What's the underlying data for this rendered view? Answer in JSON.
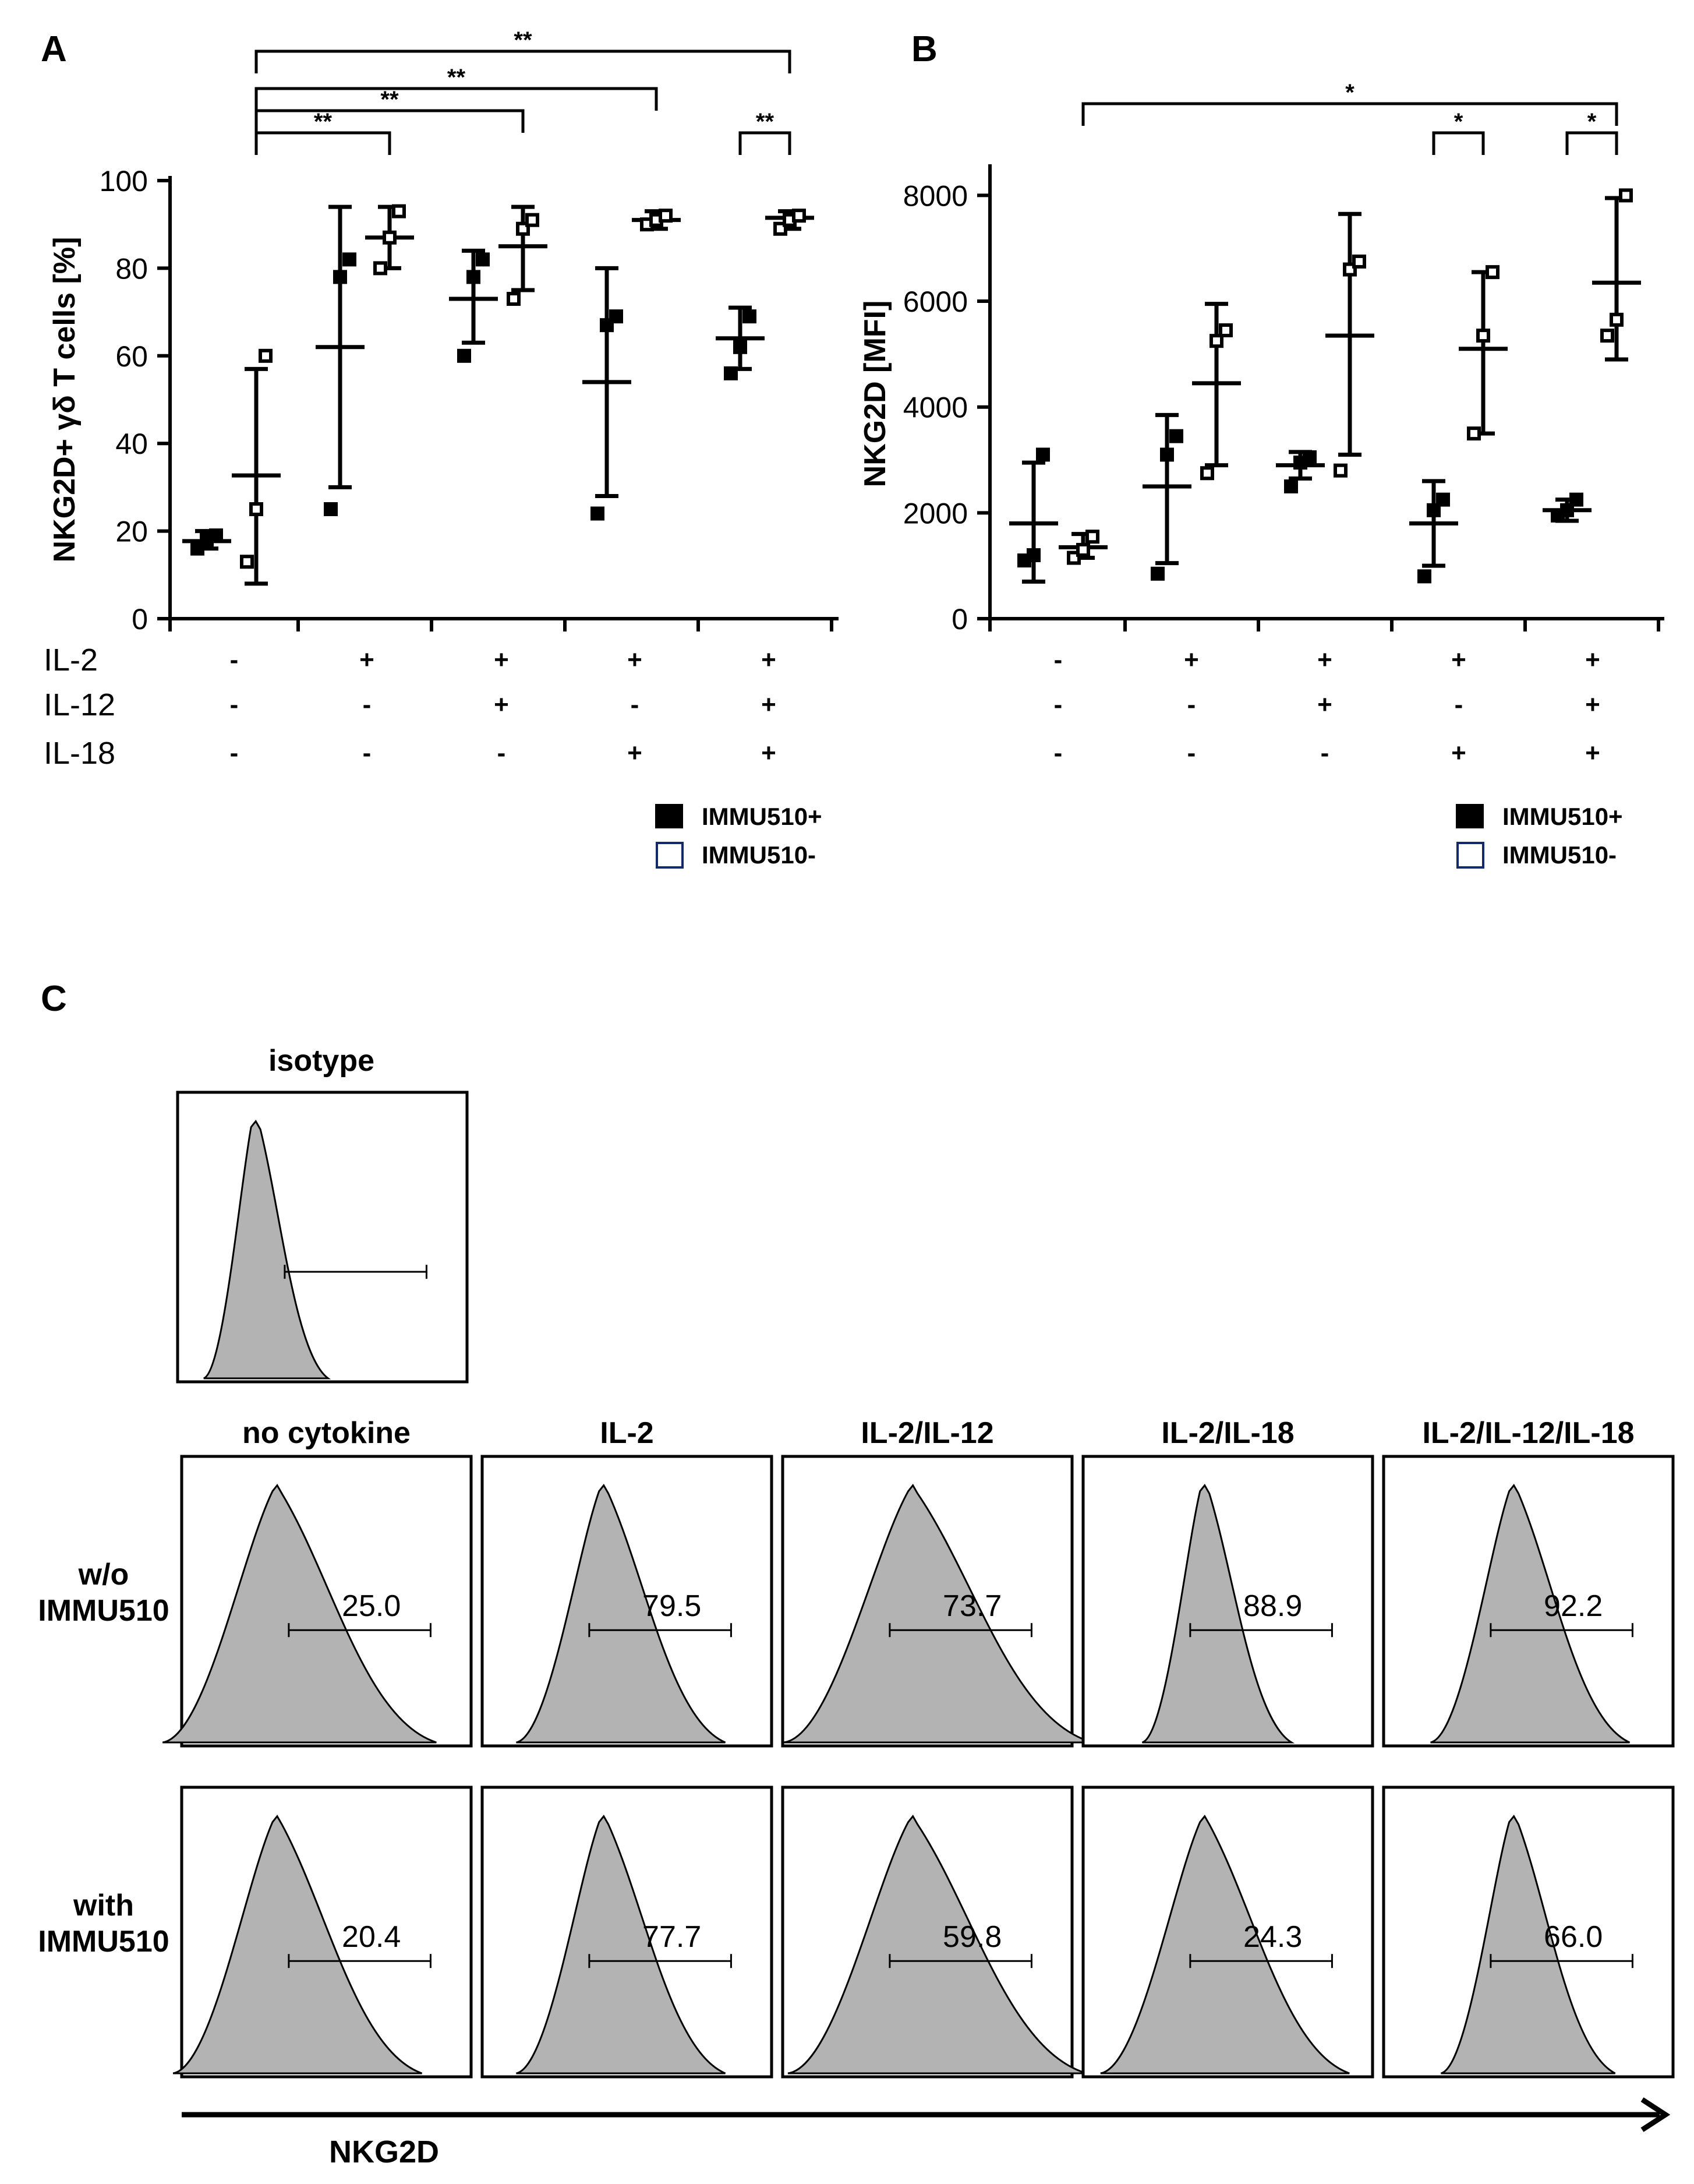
{
  "panel_labels": {
    "a": "A",
    "b": "B",
    "c": "C"
  },
  "conditions": {
    "rows": [
      {
        "label": "IL-2",
        "values": [
          "-",
          "+",
          "+",
          "+",
          "+"
        ]
      },
      {
        "label": "IL-12",
        "values": [
          "-",
          "-",
          "+",
          "-",
          "+"
        ]
      },
      {
        "label": "IL-18",
        "values": [
          "-",
          "-",
          "-",
          "+",
          "+"
        ]
      }
    ]
  },
  "legend": {
    "filled": "IMMU510+",
    "open": "IMMU510-"
  },
  "chart_data": [
    {
      "panel": "A",
      "type": "scatter",
      "ylabel": "NKG2D+ γδ T cells [%]",
      "ylim": [
        0,
        100
      ],
      "yticks": [
        "0",
        "20",
        "40",
        "60",
        "80",
        "100"
      ],
      "groups": 5,
      "series": [
        {
          "name": "IMMU510+",
          "marker": "filled-square",
          "points": [
            [
              16,
              18,
              19
            ],
            [
              25,
              78,
              82
            ],
            [
              60,
              78,
              82
            ],
            [
              24,
              67,
              69
            ],
            [
              56,
              62,
              69
            ]
          ],
          "mean": [
            17.7,
            62,
            73,
            54,
            64
          ],
          "sd_range": [
            [
              16,
              20
            ],
            [
              30,
              94
            ],
            [
              63,
              84
            ],
            [
              28,
              80
            ],
            [
              57,
              71
            ]
          ]
        },
        {
          "name": "IMMU510-",
          "marker": "open-square",
          "points": [
            [
              13,
              25,
              60
            ],
            [
              80,
              87,
              93
            ],
            [
              73,
              89,
              91
            ],
            [
              90,
              91,
              92
            ],
            [
              89,
              91,
              92
            ]
          ],
          "mean": [
            32.7,
            87,
            85,
            91,
            91.5
          ],
          "sd_range": [
            [
              8,
              57
            ],
            [
              80,
              94
            ],
            [
              75,
              94
            ],
            [
              89,
              93
            ],
            [
              89,
              93
            ]
          ]
        }
      ],
      "significance": [
        {
          "from_group": 1,
          "from_series": "IMMU510-",
          "to_group": 2,
          "to_series": "IMMU510-",
          "label": "**"
        },
        {
          "from_group": 1,
          "from_series": "IMMU510-",
          "to_group": 3,
          "to_series": "IMMU510-",
          "label": "**"
        },
        {
          "from_group": 1,
          "from_series": "IMMU510-",
          "to_group": 4,
          "to_series": "IMMU510-",
          "label": "**"
        },
        {
          "from_group": 1,
          "from_series": "IMMU510-",
          "to_group": 5,
          "to_series": "IMMU510-",
          "label": "**"
        },
        {
          "from_group": 5,
          "from_series": "IMMU510+",
          "to_group": 5,
          "to_series": "IMMU510-",
          "label": "**"
        }
      ]
    },
    {
      "panel": "B",
      "type": "scatter",
      "ylabel": "NKG2D  [MFI]",
      "ylim": [
        0,
        8500
      ],
      "yticks": [
        "0",
        "2000",
        "4000",
        "6000",
        "8000"
      ],
      "groups": 5,
      "series": [
        {
          "name": "IMMU510+",
          "marker": "filled-square",
          "points": [
            [
              1100,
              1200,
              3100
            ],
            [
              850,
              3100,
              3450
            ],
            [
              2500,
              2950,
              3050
            ],
            [
              800,
              2050,
              2250
            ],
            [
              1950,
              2050,
              2250
            ]
          ],
          "mean": [
            1800,
            2500,
            2900,
            1800,
            2050
          ],
          "sd_range": [
            [
              700,
              2950
            ],
            [
              1050,
              3850
            ],
            [
              2650,
              3150
            ],
            [
              1000,
              2600
            ],
            [
              1850,
              2250
            ]
          ]
        },
        {
          "name": "IMMU510-",
          "marker": "open-square",
          "points": [
            [
              1150,
              1300,
              1550
            ],
            [
              2750,
              5250,
              5450
            ],
            [
              2800,
              6600,
              6750
            ],
            [
              3500,
              5350,
              6550
            ],
            [
              5350,
              5650,
              8000
            ]
          ],
          "mean": [
            1350,
            4450,
            5350,
            5100,
            6350
          ],
          "sd_range": [
            [
              1150,
              1600
            ],
            [
              2900,
              5950
            ],
            [
              3100,
              7650
            ],
            [
              3500,
              6550
            ],
            [
              4900,
              7950
            ]
          ]
        }
      ],
      "significance": [
        {
          "from_group": 1,
          "from_series": "IMMU510-",
          "to_group": 5,
          "to_series": "IMMU510-",
          "label": "*"
        },
        {
          "from_group": 4,
          "from_series": "IMMU510+",
          "to_group": 4,
          "to_series": "IMMU510-",
          "label": "*"
        },
        {
          "from_group": 5,
          "from_series": "IMMU510+",
          "to_group": 5,
          "to_series": "IMMU510-",
          "label": "*"
        }
      ]
    },
    {
      "panel": "C",
      "type": "histogram",
      "isotype_label": "isotype",
      "columns": [
        "no cytokine",
        "IL-2",
        "IL-2/IL-12",
        "IL-2/IL-18",
        "IL-2/IL-12/IL-18"
      ],
      "rows": [
        {
          "label": [
            "w/o",
            "IMMU510"
          ],
          "values": [
            "25.0",
            "79.5",
            "73.7",
            "88.9",
            "92.2"
          ]
        },
        {
          "label": [
            "with",
            "IMMU510"
          ],
          "values": [
            "20.4",
            "77.7",
            "59.8",
            "24.3",
            "66.0"
          ]
        }
      ],
      "xlabel": "NKG2D"
    }
  ]
}
